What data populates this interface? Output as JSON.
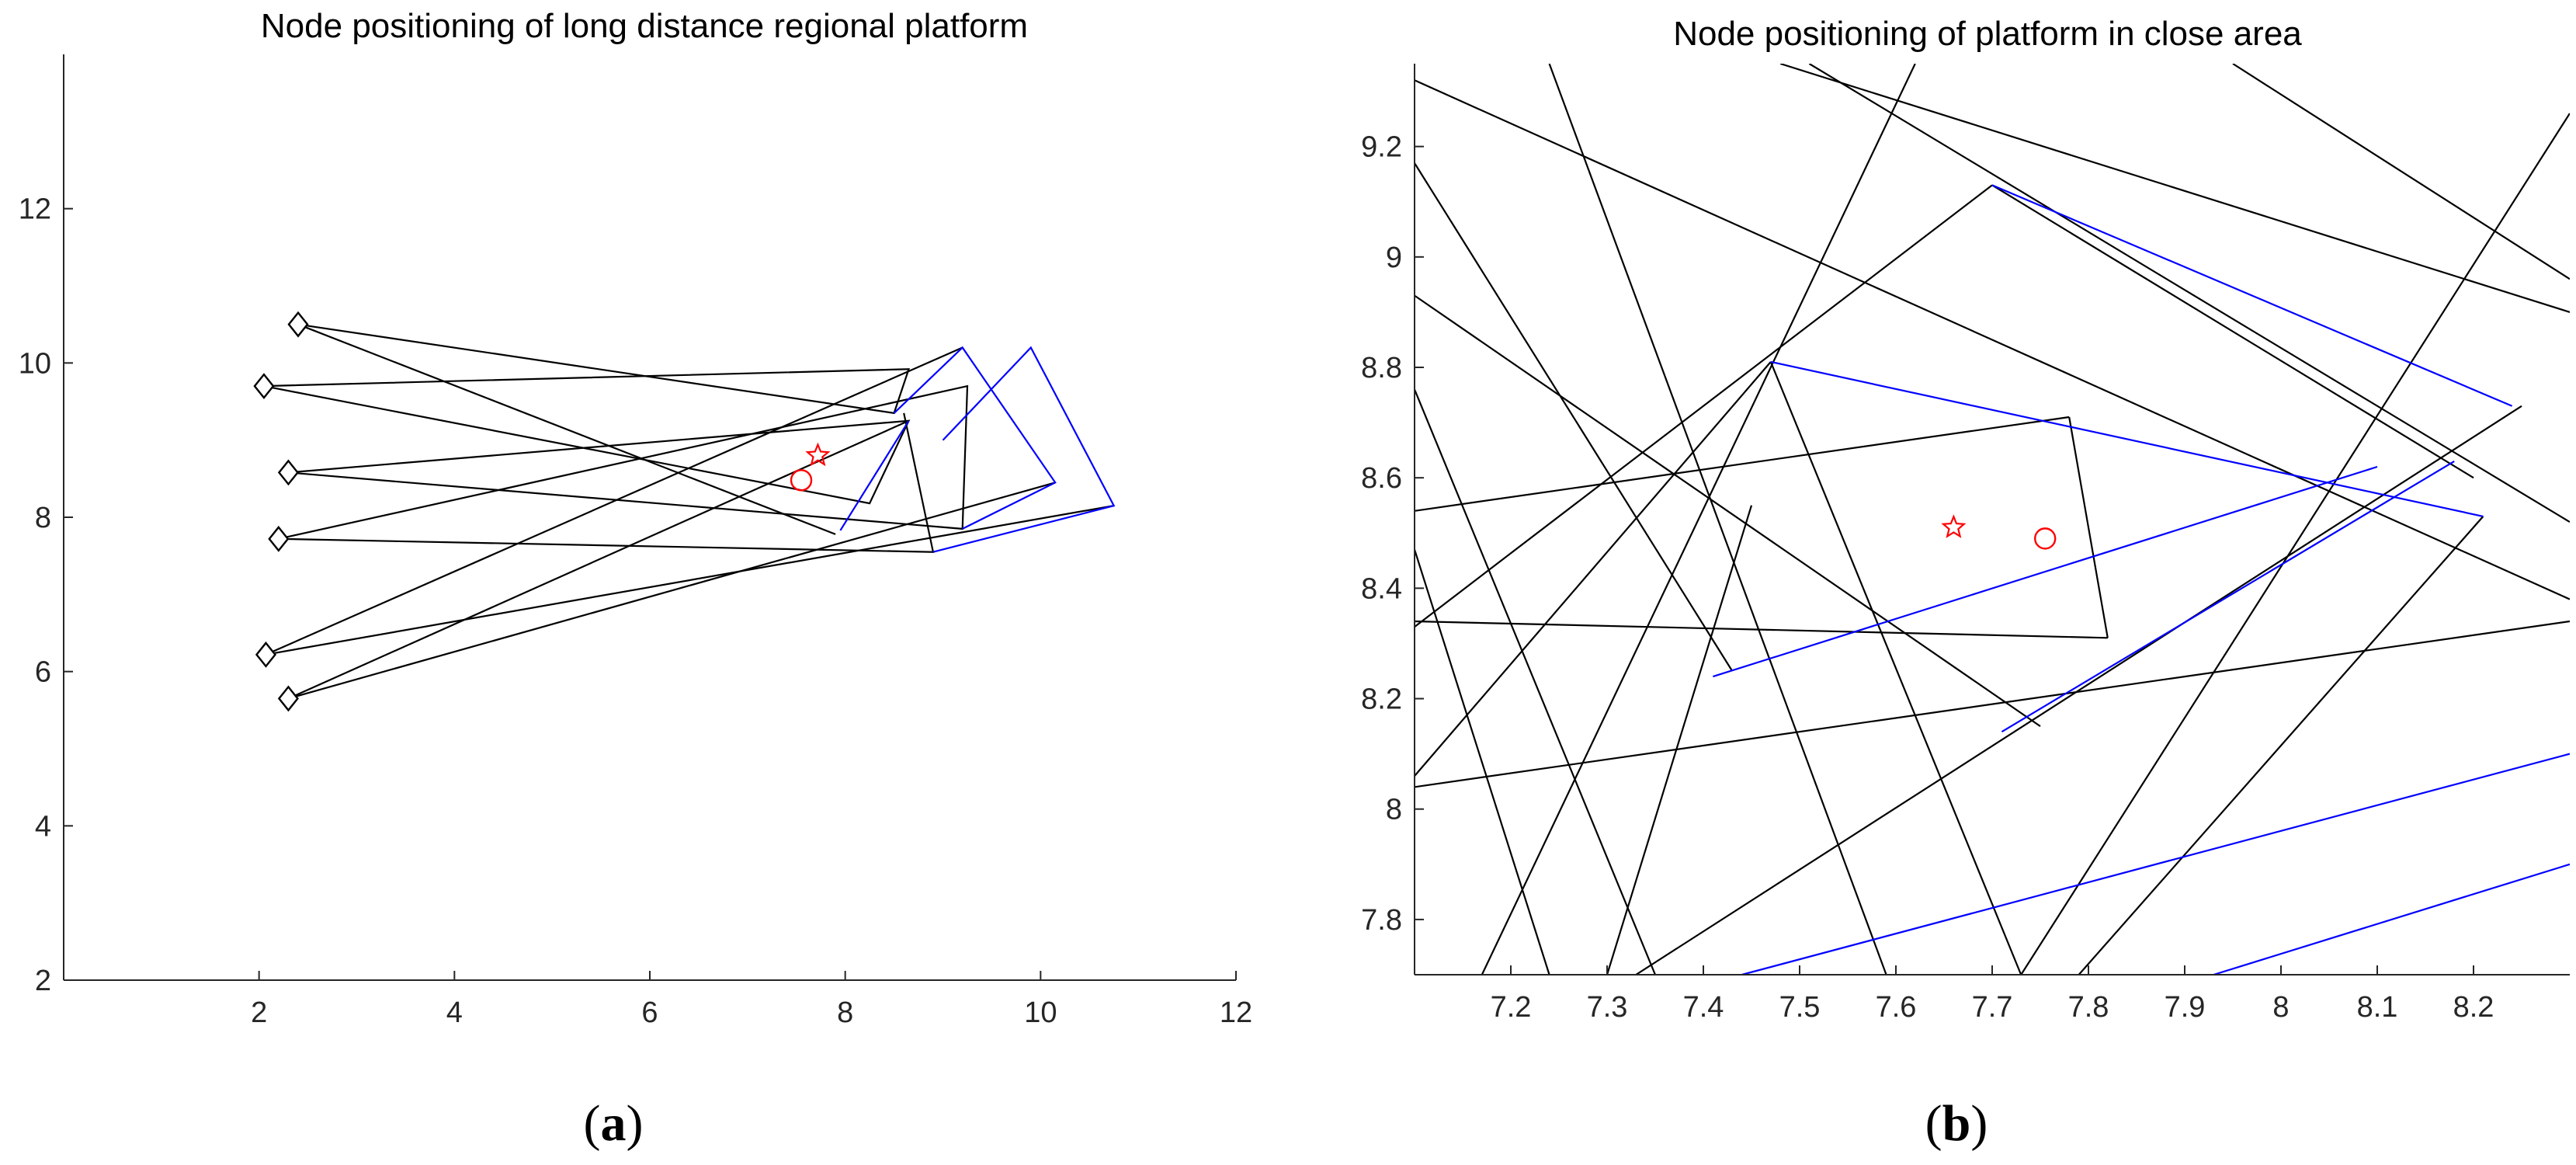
{
  "chart_data": [
    {
      "id": "a",
      "type": "line",
      "title": "Node positioning of long distance regional platform",
      "caption": {
        "open": "(",
        "letter": "a",
        "close": ")"
      },
      "xlim": [
        0,
        12
      ],
      "ylim": [
        2,
        14
      ],
      "xticks": [
        2,
        4,
        6,
        8,
        10,
        12
      ],
      "yticks": [
        2,
        4,
        6,
        8,
        10,
        12
      ],
      "grid": false,
      "colors": {
        "anchor_lines": "#000000",
        "estimate_lines": "#0000ff",
        "markers": "#ff0000",
        "axis": "#262626"
      },
      "anchors": [
        {
          "x": 2.4,
          "y": 10.5
        },
        {
          "x": 2.05,
          "y": 9.7
        },
        {
          "x": 2.3,
          "y": 8.58
        },
        {
          "x": 2.2,
          "y": 7.72
        },
        {
          "x": 2.07,
          "y": 6.22
        },
        {
          "x": 2.3,
          "y": 5.65
        }
      ],
      "anchor_polylines": [
        [
          [
            2.4,
            10.5
          ],
          [
            8.5,
            9.35
          ],
          [
            8.65,
            9.92
          ],
          [
            2.05,
            9.7
          ],
          [
            8.25,
            8.18
          ],
          [
            8.65,
            9.25
          ],
          [
            2.3,
            8.58
          ],
          [
            9.2,
            7.85
          ],
          [
            9.25,
            9.7
          ],
          [
            2.2,
            7.72
          ],
          [
            8.9,
            7.55
          ],
          [
            8.6,
            9.35
          ]
        ],
        [
          [
            2.4,
            10.5
          ],
          [
            7.9,
            7.78
          ]
        ],
        [
          [
            2.07,
            6.22
          ],
          [
            10.75,
            8.15
          ]
        ],
        [
          [
            2.07,
            6.22
          ],
          [
            9.2,
            10.2
          ]
        ],
        [
          [
            2.3,
            5.65
          ],
          [
            10.15,
            8.45
          ]
        ],
        [
          [
            2.3,
            5.65
          ],
          [
            8.65,
            9.25
          ]
        ]
      ],
      "estimate_polylines": [
        [
          [
            7.95,
            7.83
          ],
          [
            8.65,
            9.25
          ]
        ],
        [
          [
            9.2,
            7.85
          ],
          [
            10.15,
            8.45
          ],
          [
            9.2,
            10.2
          ],
          [
            8.5,
            9.35
          ]
        ],
        [
          [
            8.9,
            7.55
          ],
          [
            10.75,
            8.15
          ],
          [
            9.9,
            10.2
          ],
          [
            9.0,
            9.0
          ]
        ]
      ],
      "star": {
        "x": 7.72,
        "y": 8.8
      },
      "circle": {
        "x": 7.55,
        "y": 8.48
      }
    },
    {
      "id": "b",
      "type": "line",
      "title": "Node positioning of platform in close area",
      "caption": {
        "open": "(",
        "letter": "b",
        "close": ")"
      },
      "xlim": [
        7.1,
        8.3
      ],
      "ylim": [
        7.7,
        9.35
      ],
      "xticks": [
        7.2,
        7.3,
        7.4,
        7.5,
        7.6,
        7.7,
        7.8,
        7.9,
        8,
        8.1,
        8.2
      ],
      "xtick_labels": [
        "7.2",
        "7.3",
        "7.4",
        "7.5",
        "7.6",
        "7.7",
        "7.8",
        "7.9",
        "8",
        "8.1",
        "8.2"
      ],
      "yticks": [
        7.8,
        8,
        8.2,
        8.4,
        8.6,
        8.8,
        9,
        9.2
      ],
      "ytick_labels": [
        "7.8",
        "8",
        "8.2",
        "8.4",
        "8.6",
        "8.8",
        "9",
        "9.2"
      ],
      "grid": false,
      "colors": {
        "anchor_lines": "#000000",
        "estimate_lines": "#0000ff",
        "markers": "#ff0000",
        "axis": "#262626"
      },
      "anchor_lines": [
        [
          [
            7.1,
            9.32
          ],
          [
            8.3,
            8.38
          ]
        ],
        [
          [
            7.1,
            9.17
          ],
          [
            7.43,
            8.25
          ]
        ],
        [
          [
            7.1,
            8.93
          ],
          [
            7.75,
            8.15
          ]
        ],
        [
          [
            7.1,
            8.76
          ],
          [
            7.35,
            7.7
          ]
        ],
        [
          [
            7.1,
            8.47
          ],
          [
            7.24,
            7.7
          ]
        ],
        [
          [
            7.1,
            8.54
          ],
          [
            7.78,
            8.71
          ]
        ],
        [
          [
            7.78,
            8.71
          ],
          [
            7.82,
            8.31
          ]
        ],
        [
          [
            7.1,
            8.34
          ],
          [
            7.82,
            8.31
          ]
        ],
        [
          [
            7.1,
            8.06
          ],
          [
            7.47,
            8.81
          ]
        ],
        [
          [
            7.47,
            8.81
          ],
          [
            7.73,
            7.7
          ]
        ],
        [
          [
            7.1,
            8.33
          ],
          [
            7.7,
            9.13
          ]
        ],
        [
          [
            7.7,
            9.13
          ],
          [
            8.2,
            8.6
          ]
        ],
        [
          [
            7.1,
            8.04
          ],
          [
            8.3,
            8.34
          ]
        ],
        [
          [
            7.17,
            7.7
          ],
          [
            7.62,
            9.35
          ]
        ],
        [
          [
            7.3,
            7.7
          ],
          [
            7.45,
            8.55
          ]
        ],
        [
          [
            7.33,
            7.7
          ],
          [
            8.25,
            8.73
          ]
        ],
        [
          [
            7.73,
            7.7
          ],
          [
            8.3,
            9.26
          ]
        ],
        [
          [
            7.79,
            7.7
          ],
          [
            8.21,
            8.53
          ]
        ],
        [
          [
            7.48,
            9.35
          ],
          [
            8.3,
            8.9
          ]
        ],
        [
          [
            7.51,
            9.35
          ],
          [
            8.3,
            8.52
          ]
        ],
        [
          [
            7.24,
            9.35
          ],
          [
            7.59,
            7.7
          ]
        ],
        [
          [
            7.95,
            9.35
          ],
          [
            8.3,
            8.96
          ]
        ]
      ],
      "estimate_lines": [
        [
          [
            7.47,
            8.81
          ],
          [
            8.21,
            8.53
          ]
        ],
        [
          [
            7.41,
            8.24
          ],
          [
            8.1,
            8.62
          ]
        ],
        [
          [
            7.7,
            9.13
          ],
          [
            8.24,
            8.73
          ]
        ],
        [
          [
            7.71,
            8.14
          ],
          [
            8.18,
            8.63
          ]
        ],
        [
          [
            7.44,
            7.7
          ],
          [
            8.3,
            8.1
          ]
        ],
        [
          [
            7.93,
            7.7
          ],
          [
            8.3,
            7.9
          ]
        ]
      ],
      "star": {
        "x": 7.66,
        "y": 8.51
      },
      "circle": {
        "x": 7.755,
        "y": 8.49
      }
    }
  ]
}
